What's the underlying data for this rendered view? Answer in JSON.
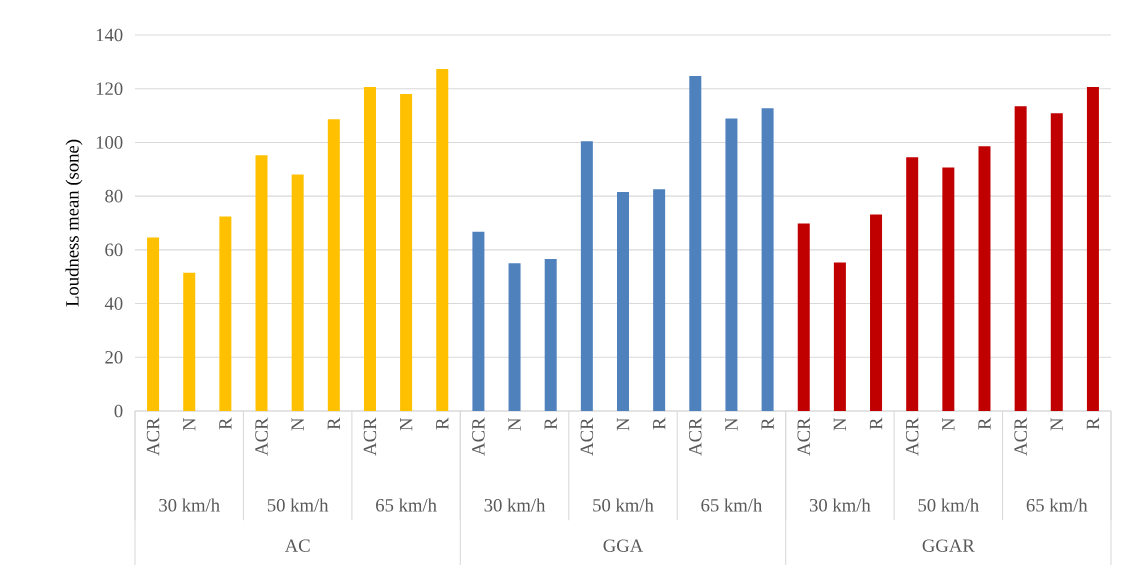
{
  "chart_data": {
    "type": "bar",
    "ylabel": "Loudness mean (sone)",
    "categories": [
      "ACR",
      "N",
      "R",
      "ACR",
      "N",
      "R",
      "ACR",
      "N",
      "R",
      "ACR",
      "N",
      "R",
      "ACR",
      "N",
      "R",
      "ACR",
      "N",
      "R",
      "ACR",
      "N",
      "R",
      "ACR",
      "N",
      "R",
      "ACR",
      "N",
      "R"
    ],
    "values": [
      64.6,
      51.5,
      72.4,
      95.2,
      88.1,
      108.6,
      120.6,
      118.0,
      127.3,
      66.7,
      55.0,
      56.6,
      100.4,
      81.5,
      82.6,
      124.7,
      108.9,
      112.7,
      69.8,
      55.3,
      73.2,
      94.5,
      90.7,
      98.6,
      113.5,
      110.9,
      120.6
    ],
    "colors": [
      "#ffc000",
      "#ffc000",
      "#ffc000",
      "#ffc000",
      "#ffc000",
      "#ffc000",
      "#ffc000",
      "#ffc000",
      "#ffc000",
      "#4f81bd",
      "#4f81bd",
      "#4f81bd",
      "#4f81bd",
      "#4f81bd",
      "#4f81bd",
      "#4f81bd",
      "#4f81bd",
      "#4f81bd",
      "#c00000",
      "#c00000",
      "#c00000",
      "#c00000",
      "#c00000",
      "#c00000",
      "#c00000",
      "#c00000",
      "#c00000"
    ],
    "ylim": [
      0,
      140
    ],
    "yticks": [
      0,
      20,
      40,
      60,
      80,
      100,
      120,
      140
    ],
    "grid": "y",
    "annotations": [
      "30 km/h",
      "50 km/h",
      "65 km/h",
      "30 km/h",
      "50 km/h",
      "65 km/h",
      "30 km/h",
      "50 km/h",
      "65 km/h",
      "AC",
      "GGA",
      "GGAR"
    ]
  }
}
